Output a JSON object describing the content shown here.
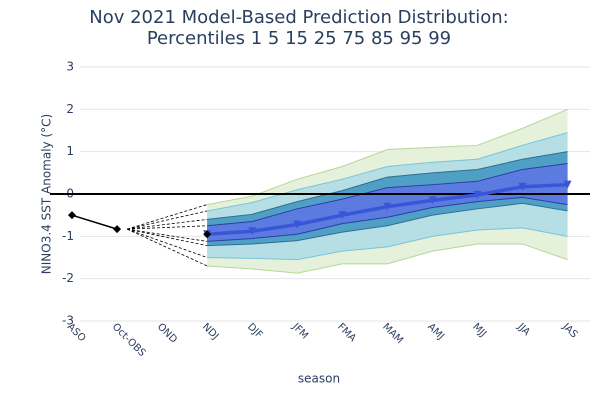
{
  "chart_data": {
    "type": "band",
    "title": [
      "Nov 2021 Model-Based Prediction Distribution:",
      "Percentiles 1 5 15 25 75 85 95 99"
    ],
    "x_label": "season",
    "y_label": "NINO3.4 SST Anomaly (°C)",
    "categories": [
      "ASO",
      "Oct-OBS",
      "OND",
      "NDJ",
      "DJF",
      "JFM",
      "FMA",
      "MAM",
      "AMJ",
      "MJJ",
      "JJA",
      "JAS"
    ],
    "ylim": [
      -3,
      3
    ],
    "yticks": [
      -3,
      -2,
      -1,
      0,
      1,
      2,
      3
    ],
    "grid": true,
    "zero_line": true,
    "observed": {
      "color": "#000000",
      "values": [
        -0.5,
        -0.83,
        null,
        null,
        null,
        null,
        null,
        null,
        null,
        null,
        null,
        null
      ]
    },
    "bands": [
      {
        "fill": "#e6f1dc",
        "color": "#b3d897",
        "lower": [
          null,
          null,
          null,
          -1.7,
          -1.77,
          -1.87,
          -1.65,
          -1.65,
          -1.35,
          -1.18,
          -1.18,
          -1.55
        ],
        "upper": [
          null,
          null,
          null,
          -0.25,
          -0.05,
          0.35,
          0.65,
          1.05,
          1.1,
          1.15,
          1.55,
          2.0
        ]
      },
      {
        "fill": "#b5dfe4",
        "color": "#78c4d6",
        "lower": [
          null,
          null,
          null,
          -1.5,
          -1.52,
          -1.55,
          -1.35,
          -1.25,
          -1.0,
          -0.85,
          -0.8,
          -1.0
        ],
        "upper": [
          null,
          null,
          null,
          -0.4,
          -0.2,
          0.1,
          0.35,
          0.65,
          0.75,
          0.82,
          1.15,
          1.45
        ]
      },
      {
        "fill": "#4f9fc6",
        "color": "#2f6f8f",
        "lower": [
          null,
          null,
          null,
          -1.22,
          -1.18,
          -1.1,
          -0.9,
          -0.75,
          -0.5,
          -0.35,
          -0.22,
          -0.4
        ],
        "upper": [
          null,
          null,
          null,
          -0.6,
          -0.48,
          -0.18,
          0.08,
          0.4,
          0.5,
          0.58,
          0.82,
          1.0
        ]
      },
      {
        "fill": "#5b7be0",
        "color": "#2c3f9e",
        "lower": [
          null,
          null,
          null,
          -1.12,
          -1.05,
          -0.95,
          -0.7,
          -0.55,
          -0.32,
          -0.18,
          -0.08,
          -0.25
        ],
        "upper": [
          null,
          null,
          null,
          -0.75,
          -0.65,
          -0.35,
          -0.12,
          0.15,
          0.22,
          0.3,
          0.58,
          0.72
        ]
      }
    ],
    "median": {
      "color": "#3a56d8",
      "values": [
        null,
        null,
        null,
        -0.95,
        -0.88,
        -0.72,
        -0.5,
        -0.3,
        -0.15,
        -0.02,
        0.17,
        0.22
      ]
    }
  }
}
